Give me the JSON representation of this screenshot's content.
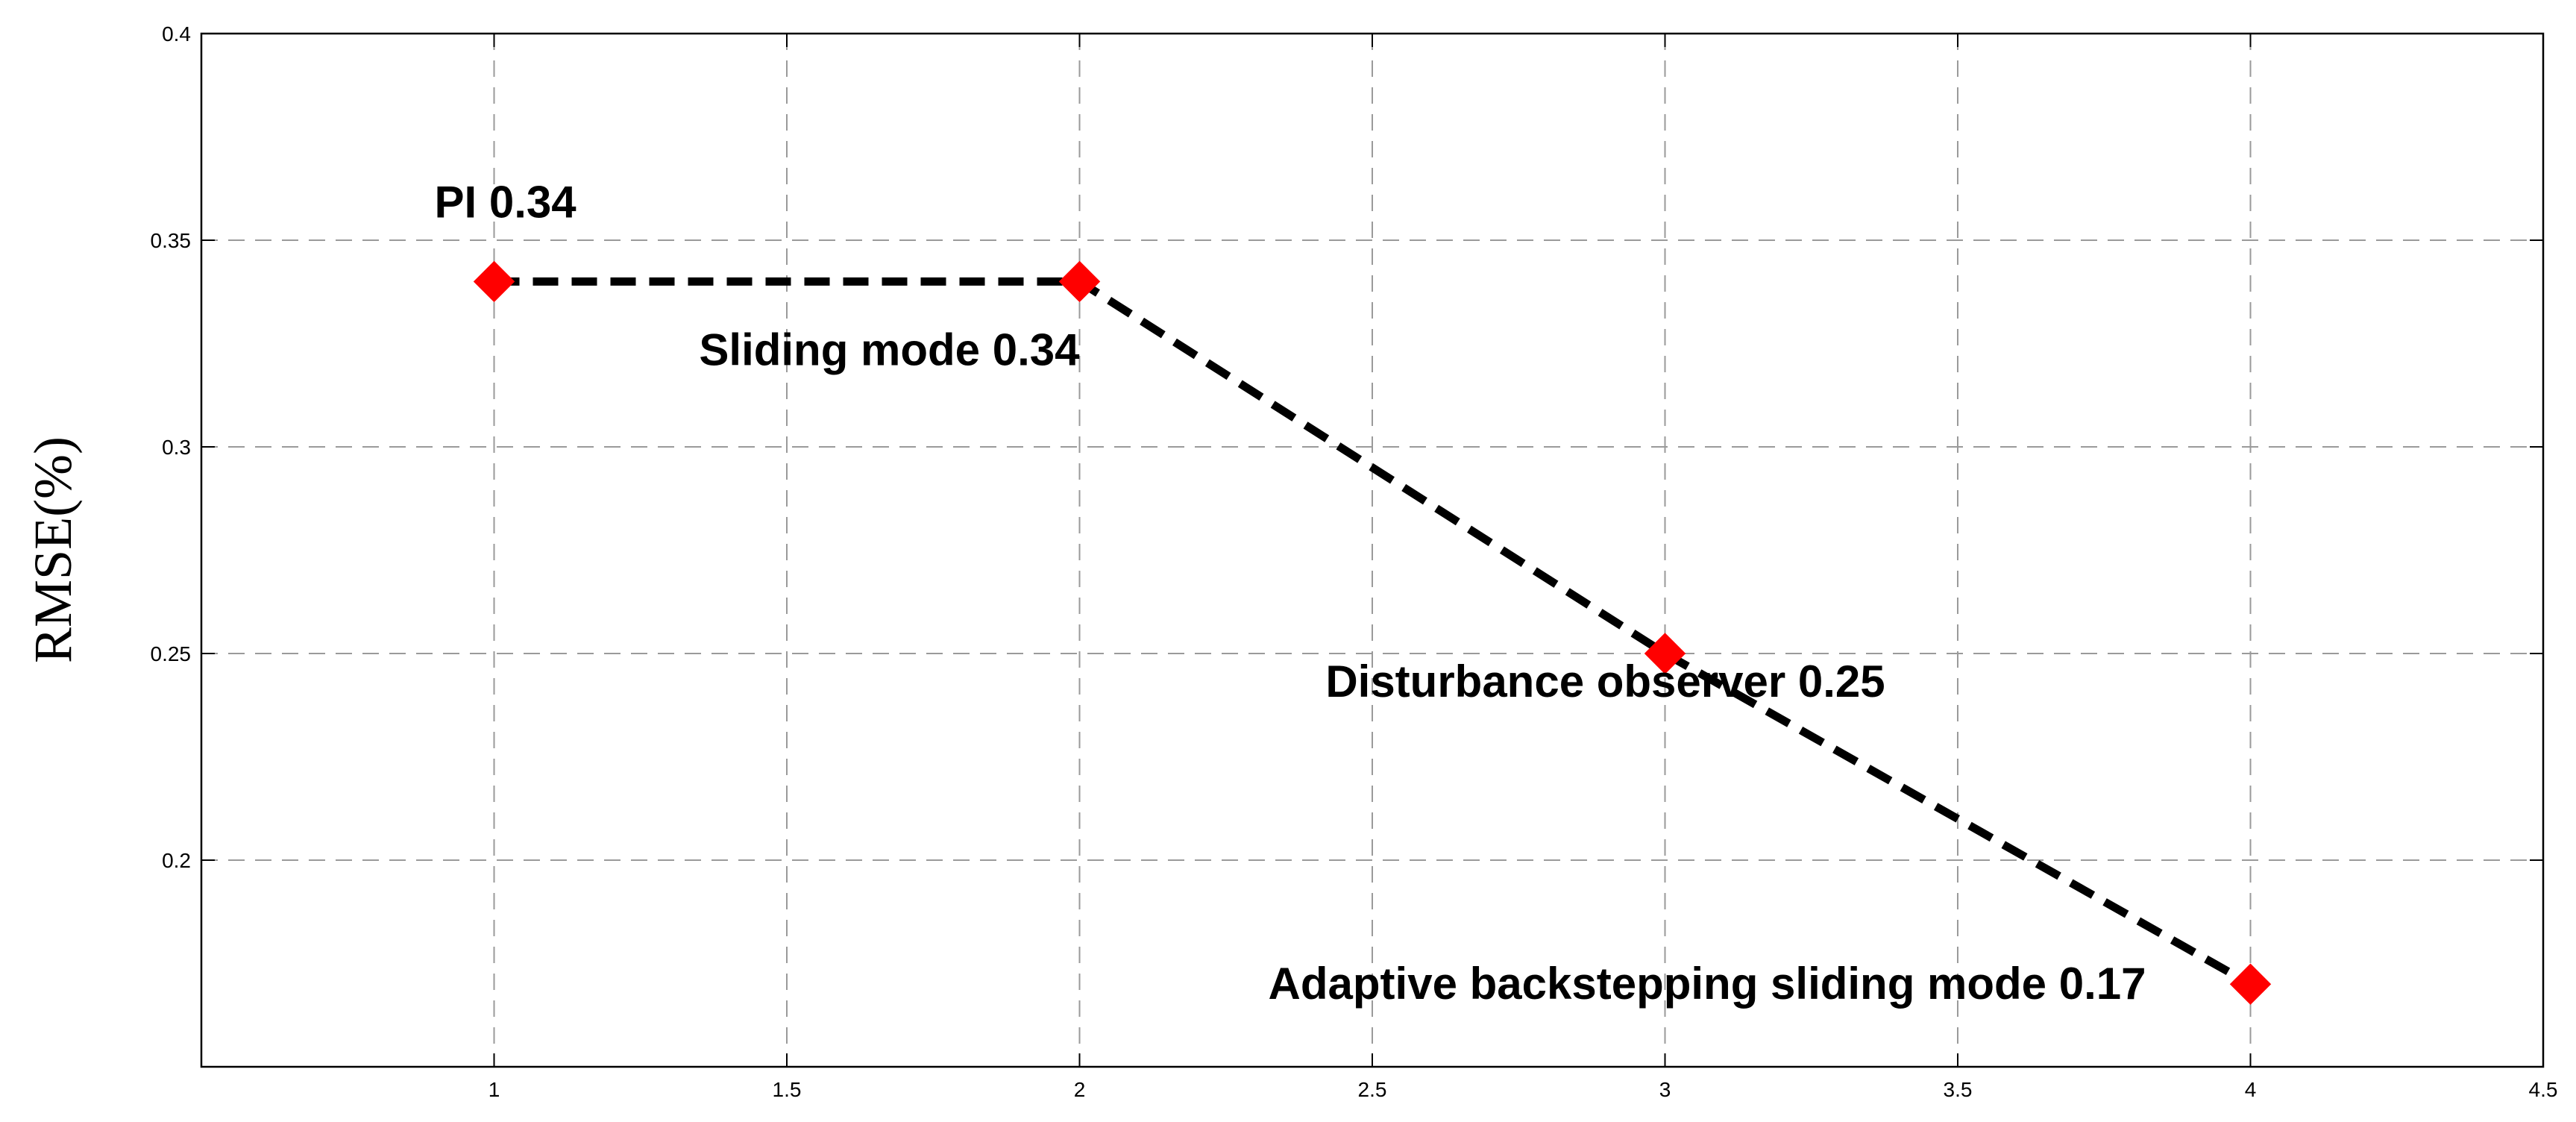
{
  "chart_data": {
    "type": "line",
    "title": "",
    "xlabel": "",
    "ylabel": "RMSE(%)",
    "xlim": [
      0.5,
      4.5
    ],
    "ylim": [
      0.15,
      0.4
    ],
    "xticks": [
      1,
      1.5,
      2,
      2.5,
      3,
      3.5,
      4,
      4.5
    ],
    "xtick_labels": [
      "1",
      "1.5",
      "2",
      "2.5",
      "3",
      "3.5",
      "4",
      "4.5"
    ],
    "yticks": [
      0.2,
      0.25,
      0.3,
      0.35,
      0.4
    ],
    "ytick_labels": [
      "0.2",
      "0.25",
      "0.3",
      "0.35",
      "0.4"
    ],
    "grid": true,
    "series": [
      {
        "x": [
          1,
          2,
          3,
          4
        ],
        "values": [
          0.34,
          0.34,
          0.25,
          0.17
        ],
        "line_color": "#000000",
        "line_style": "dashed",
        "marker": "diamond",
        "marker_color": "#ff0000"
      }
    ],
    "annotations": [
      {
        "text": "PI 0.34",
        "x": 1,
        "y": 0.34
      },
      {
        "text": "Sliding mode 0.34",
        "x": 2,
        "y": 0.34
      },
      {
        "text": "Disturbance observer 0.25",
        "x": 3,
        "y": 0.25
      },
      {
        "text": "Adaptive backstepping sliding mode 0.17",
        "x": 4,
        "y": 0.17
      }
    ]
  }
}
